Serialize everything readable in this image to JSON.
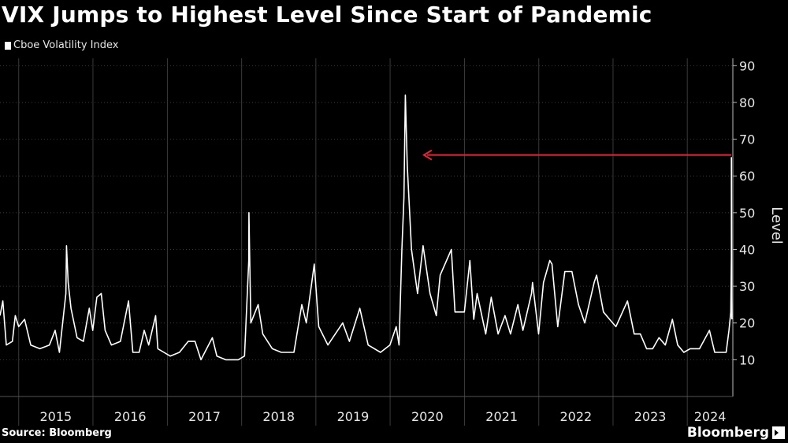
{
  "header": {
    "title": "VIX Jumps to Highest Level Since Start of Pandemic"
  },
  "footer": {
    "source": "Source: Bloomberg",
    "brand": "Bloomberg"
  },
  "colors": {
    "background": "#000000",
    "series": "#ffffff",
    "annotation_arrow": "#e8243c",
    "grid": "#3a3a3a"
  },
  "chart_data": {
    "type": "line",
    "title": "VIX Jumps to Highest Level Since Start of Pandemic",
    "xlabel": "",
    "ylabel": "Level",
    "ylim": [
      0,
      92
    ],
    "xlim": [
      "2014-10-01",
      "2024-08-12"
    ],
    "y_ticks": [
      10,
      20,
      30,
      40,
      50,
      60,
      70,
      80,
      90
    ],
    "x_tick_labels": [
      "2015",
      "2016",
      "2017",
      "2018",
      "2019",
      "2020",
      "2021",
      "2022",
      "2023",
      "2024"
    ],
    "grid": true,
    "legend_position": "top-left",
    "series": [
      {
        "name": "Cboe Volatility Index",
        "color": "#ffffff",
        "points": [
          [
            "2014-10-01",
            22
          ],
          [
            "2014-10-15",
            26
          ],
          [
            "2014-11-01",
            14
          ],
          [
            "2014-12-01",
            15
          ],
          [
            "2014-12-15",
            22
          ],
          [
            "2015-01-01",
            19
          ],
          [
            "2015-01-30",
            21
          ],
          [
            "2015-03-01",
            14
          ],
          [
            "2015-04-15",
            13
          ],
          [
            "2015-06-01",
            14
          ],
          [
            "2015-06-29",
            18
          ],
          [
            "2015-07-20",
            12
          ],
          [
            "2015-08-21",
            28
          ],
          [
            "2015-08-24",
            41
          ],
          [
            "2015-09-01",
            31
          ],
          [
            "2015-09-15",
            24
          ],
          [
            "2015-10-15",
            16
          ],
          [
            "2015-11-15",
            15
          ],
          [
            "2015-12-14",
            24
          ],
          [
            "2015-12-31",
            18
          ],
          [
            "2016-01-20",
            27
          ],
          [
            "2016-02-11",
            28
          ],
          [
            "2016-03-01",
            18
          ],
          [
            "2016-04-01",
            14
          ],
          [
            "2016-05-15",
            15
          ],
          [
            "2016-06-24",
            26
          ],
          [
            "2016-07-15",
            12
          ],
          [
            "2016-08-15",
            12
          ],
          [
            "2016-09-09",
            18
          ],
          [
            "2016-10-01",
            14
          ],
          [
            "2016-11-04",
            22
          ],
          [
            "2016-11-15",
            13
          ],
          [
            "2016-12-15",
            12
          ],
          [
            "2017-01-15",
            11
          ],
          [
            "2017-03-01",
            12
          ],
          [
            "2017-04-13",
            15
          ],
          [
            "2017-05-17",
            15
          ],
          [
            "2017-06-15",
            10
          ],
          [
            "2017-08-10",
            16
          ],
          [
            "2017-09-01",
            11
          ],
          [
            "2017-10-15",
            10
          ],
          [
            "2017-12-15",
            10
          ],
          [
            "2018-01-15",
            11
          ],
          [
            "2018-02-05",
            37
          ],
          [
            "2018-02-06",
            50
          ],
          [
            "2018-02-15",
            20
          ],
          [
            "2018-03-23",
            25
          ],
          [
            "2018-04-15",
            17
          ],
          [
            "2018-06-01",
            13
          ],
          [
            "2018-07-15",
            12
          ],
          [
            "2018-09-15",
            12
          ],
          [
            "2018-10-24",
            25
          ],
          [
            "2018-11-15",
            20
          ],
          [
            "2018-12-24",
            36
          ],
          [
            "2019-01-15",
            19
          ],
          [
            "2019-03-01",
            14
          ],
          [
            "2019-05-13",
            20
          ],
          [
            "2019-06-15",
            15
          ],
          [
            "2019-08-05",
            24
          ],
          [
            "2019-09-15",
            14
          ],
          [
            "2019-11-15",
            12
          ],
          [
            "2019-12-31",
            14
          ],
          [
            "2020-01-31",
            19
          ],
          [
            "2020-02-14",
            14
          ],
          [
            "2020-02-28",
            40
          ],
          [
            "2020-03-09",
            54
          ],
          [
            "2020-03-16",
            82
          ],
          [
            "2020-03-25",
            63
          ],
          [
            "2020-04-15",
            40
          ],
          [
            "2020-05-15",
            28
          ],
          [
            "2020-06-11",
            41
          ],
          [
            "2020-07-15",
            28
          ],
          [
            "2020-08-15",
            22
          ],
          [
            "2020-09-03",
            33
          ],
          [
            "2020-10-28",
            40
          ],
          [
            "2020-11-15",
            23
          ],
          [
            "2020-12-31",
            23
          ],
          [
            "2021-01-27",
            37
          ],
          [
            "2021-02-15",
            21
          ],
          [
            "2021-03-04",
            28
          ],
          [
            "2021-04-15",
            17
          ],
          [
            "2021-05-12",
            27
          ],
          [
            "2021-06-15",
            17
          ],
          [
            "2021-07-19",
            22
          ],
          [
            "2021-08-15",
            17
          ],
          [
            "2021-09-20",
            25
          ],
          [
            "2021-10-15",
            18
          ],
          [
            "2021-11-26",
            28
          ],
          [
            "2021-12-01",
            31
          ],
          [
            "2021-12-31",
            17
          ],
          [
            "2022-01-24",
            31
          ],
          [
            "2022-02-24",
            37
          ],
          [
            "2022-03-07",
            36
          ],
          [
            "2022-04-04",
            19
          ],
          [
            "2022-05-09",
            34
          ],
          [
            "2022-06-13",
            34
          ],
          [
            "2022-07-15",
            25
          ],
          [
            "2022-08-15",
            20
          ],
          [
            "2022-09-30",
            31
          ],
          [
            "2022-10-12",
            33
          ],
          [
            "2022-11-15",
            23
          ],
          [
            "2022-12-15",
            21
          ],
          [
            "2023-01-15",
            19
          ],
          [
            "2023-03-13",
            26
          ],
          [
            "2023-04-15",
            17
          ],
          [
            "2023-05-15",
            17
          ],
          [
            "2023-06-15",
            13
          ],
          [
            "2023-07-15",
            13
          ],
          [
            "2023-08-15",
            16
          ],
          [
            "2023-09-15",
            14
          ],
          [
            "2023-10-20",
            21
          ],
          [
            "2023-11-15",
            14
          ],
          [
            "2023-12-15",
            12
          ],
          [
            "2024-01-15",
            13
          ],
          [
            "2024-03-01",
            13
          ],
          [
            "2024-04-19",
            18
          ],
          [
            "2024-05-15",
            12
          ],
          [
            "2024-06-15",
            12
          ],
          [
            "2024-07-10",
            12
          ],
          [
            "2024-07-24",
            18
          ],
          [
            "2024-08-02",
            23
          ],
          [
            "2024-08-05",
            38
          ],
          [
            "2024-08-05",
            65
          ],
          [
            "2024-08-06",
            27
          ],
          [
            "2024-08-07",
            21
          ]
        ]
      }
    ],
    "annotations": [
      {
        "type": "arrow",
        "from": [
          "2024-08-05",
          65.7
        ],
        "to": [
          "2020-06-15",
          65.7
        ],
        "color": "#e8243c"
      }
    ]
  }
}
